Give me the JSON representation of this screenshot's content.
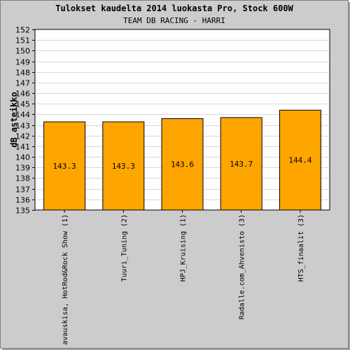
{
  "chart_data": {
    "type": "bar",
    "title": "Tulokset kaudelta 2014 luokasta Pro, Stock 600W",
    "subtitle": "TEAM DB RACING - HARRI",
    "ylabel": "dB asteikko",
    "xlabel": "",
    "ylim": [
      135,
      152
    ],
    "ytick_step": 1,
    "grid": true,
    "bar_color": "#ffa500",
    "plot_background": "#ffffff",
    "categories": [
      "avauskisa, HotRod&Rock Show (1)",
      "Tuuri_Tuning (2)",
      "HPJ_Kruising (1)",
      "Radalle.com_Ahvenisto (3)",
      "HTS_finaalit (3)"
    ],
    "values": [
      143.3,
      143.3,
      143.6,
      143.7,
      144.4
    ],
    "data_labels": [
      "143.3",
      "143.3",
      "143.6",
      "143.7",
      "144.4"
    ]
  }
}
